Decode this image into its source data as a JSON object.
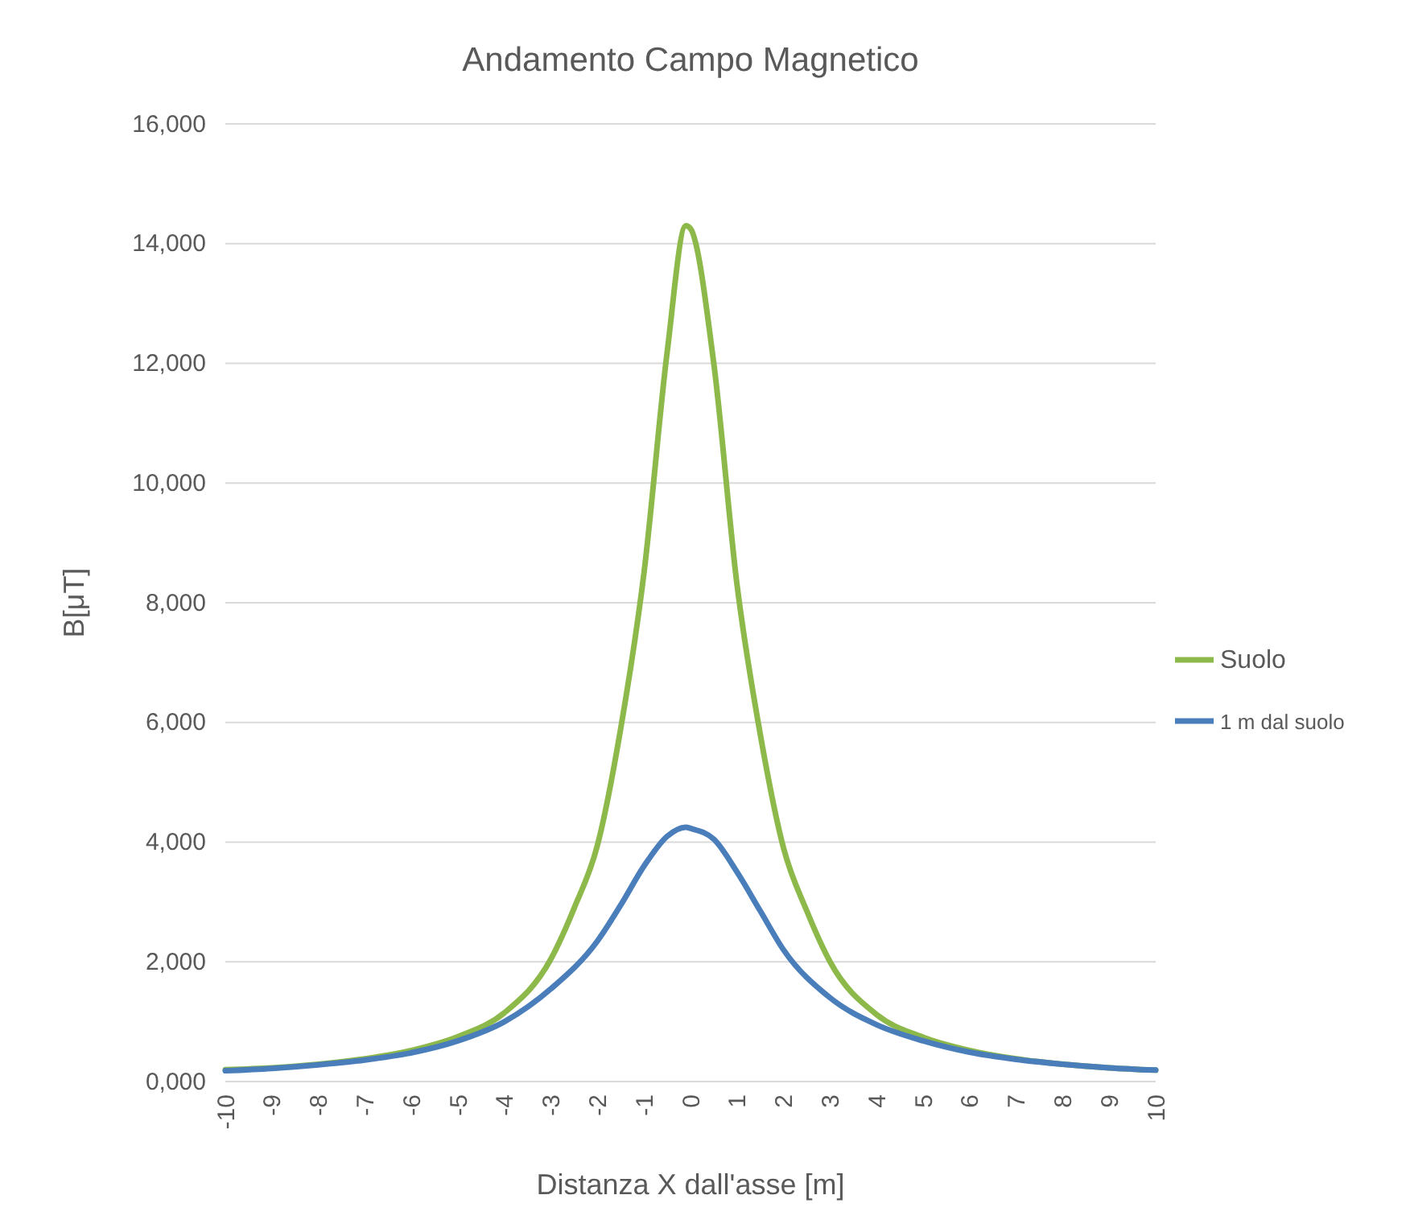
{
  "chart_data": {
    "type": "line",
    "title": "Andamento Campo Magnetico",
    "xlabel": "Distanza X dall'asse [m]",
    "ylabel": "B[μT]",
    "xlim": [
      -10,
      10
    ],
    "xticks": [
      -10,
      -9,
      -8,
      -7,
      -6,
      -5,
      -4,
      -3,
      -2,
      -1,
      0,
      1,
      2,
      3,
      4,
      5,
      6,
      7,
      8,
      9,
      10
    ],
    "ylim": [
      0,
      16000
    ],
    "yticks": [
      {
        "value": 0,
        "label": "0,000"
      },
      {
        "value": 2000,
        "label": "2,000"
      },
      {
        "value": 4000,
        "label": "4,000"
      },
      {
        "value": 6000,
        "label": "6,000"
      },
      {
        "value": 8000,
        "label": "8,000"
      },
      {
        "value": 10000,
        "label": "10,000"
      },
      {
        "value": 12000,
        "label": "12,000"
      },
      {
        "value": 14000,
        "label": "14,000"
      },
      {
        "value": 16000,
        "label": "16,000"
      }
    ],
    "grid": "y",
    "legend": "right",
    "line_style": "solid",
    "series": [
      {
        "name": "Suolo",
        "color": "#8db84a",
        "x": [
          -10,
          -9,
          -8,
          -7,
          -6,
          -5,
          -4,
          -3,
          -2.5,
          -2,
          -1.5,
          -1,
          -0.5,
          -0.1,
          0,
          0.5,
          1,
          1.5,
          2,
          2.5,
          3,
          4,
          5,
          6,
          7,
          8,
          9,
          10
        ],
        "values": [
          200,
          230,
          290,
          380,
          520,
          750,
          1150,
          2050,
          2900,
          3950,
          5900,
          8500,
          12200,
          14300,
          14250,
          12000,
          8300,
          5800,
          3900,
          2850,
          2000,
          1120,
          740,
          520,
          380,
          290,
          230,
          190
        ]
      },
      {
        "name": "1 m dal suolo",
        "color": "#4a7ebb",
        "x": [
          -10,
          -9,
          -8,
          -7,
          -6,
          -5,
          -4,
          -3,
          -2,
          -1.5,
          -1,
          -0.5,
          -0.1,
          0,
          0.5,
          1,
          1.5,
          2,
          3,
          4,
          5,
          6,
          7,
          8,
          9,
          10
        ],
        "values": [
          180,
          220,
          280,
          360,
          480,
          680,
          1000,
          1550,
          2350,
          2950,
          3600,
          4100,
          4250,
          4230,
          4050,
          3500,
          2850,
          2200,
          1400,
          950,
          680,
          490,
          370,
          290,
          230,
          190
        ]
      }
    ]
  }
}
